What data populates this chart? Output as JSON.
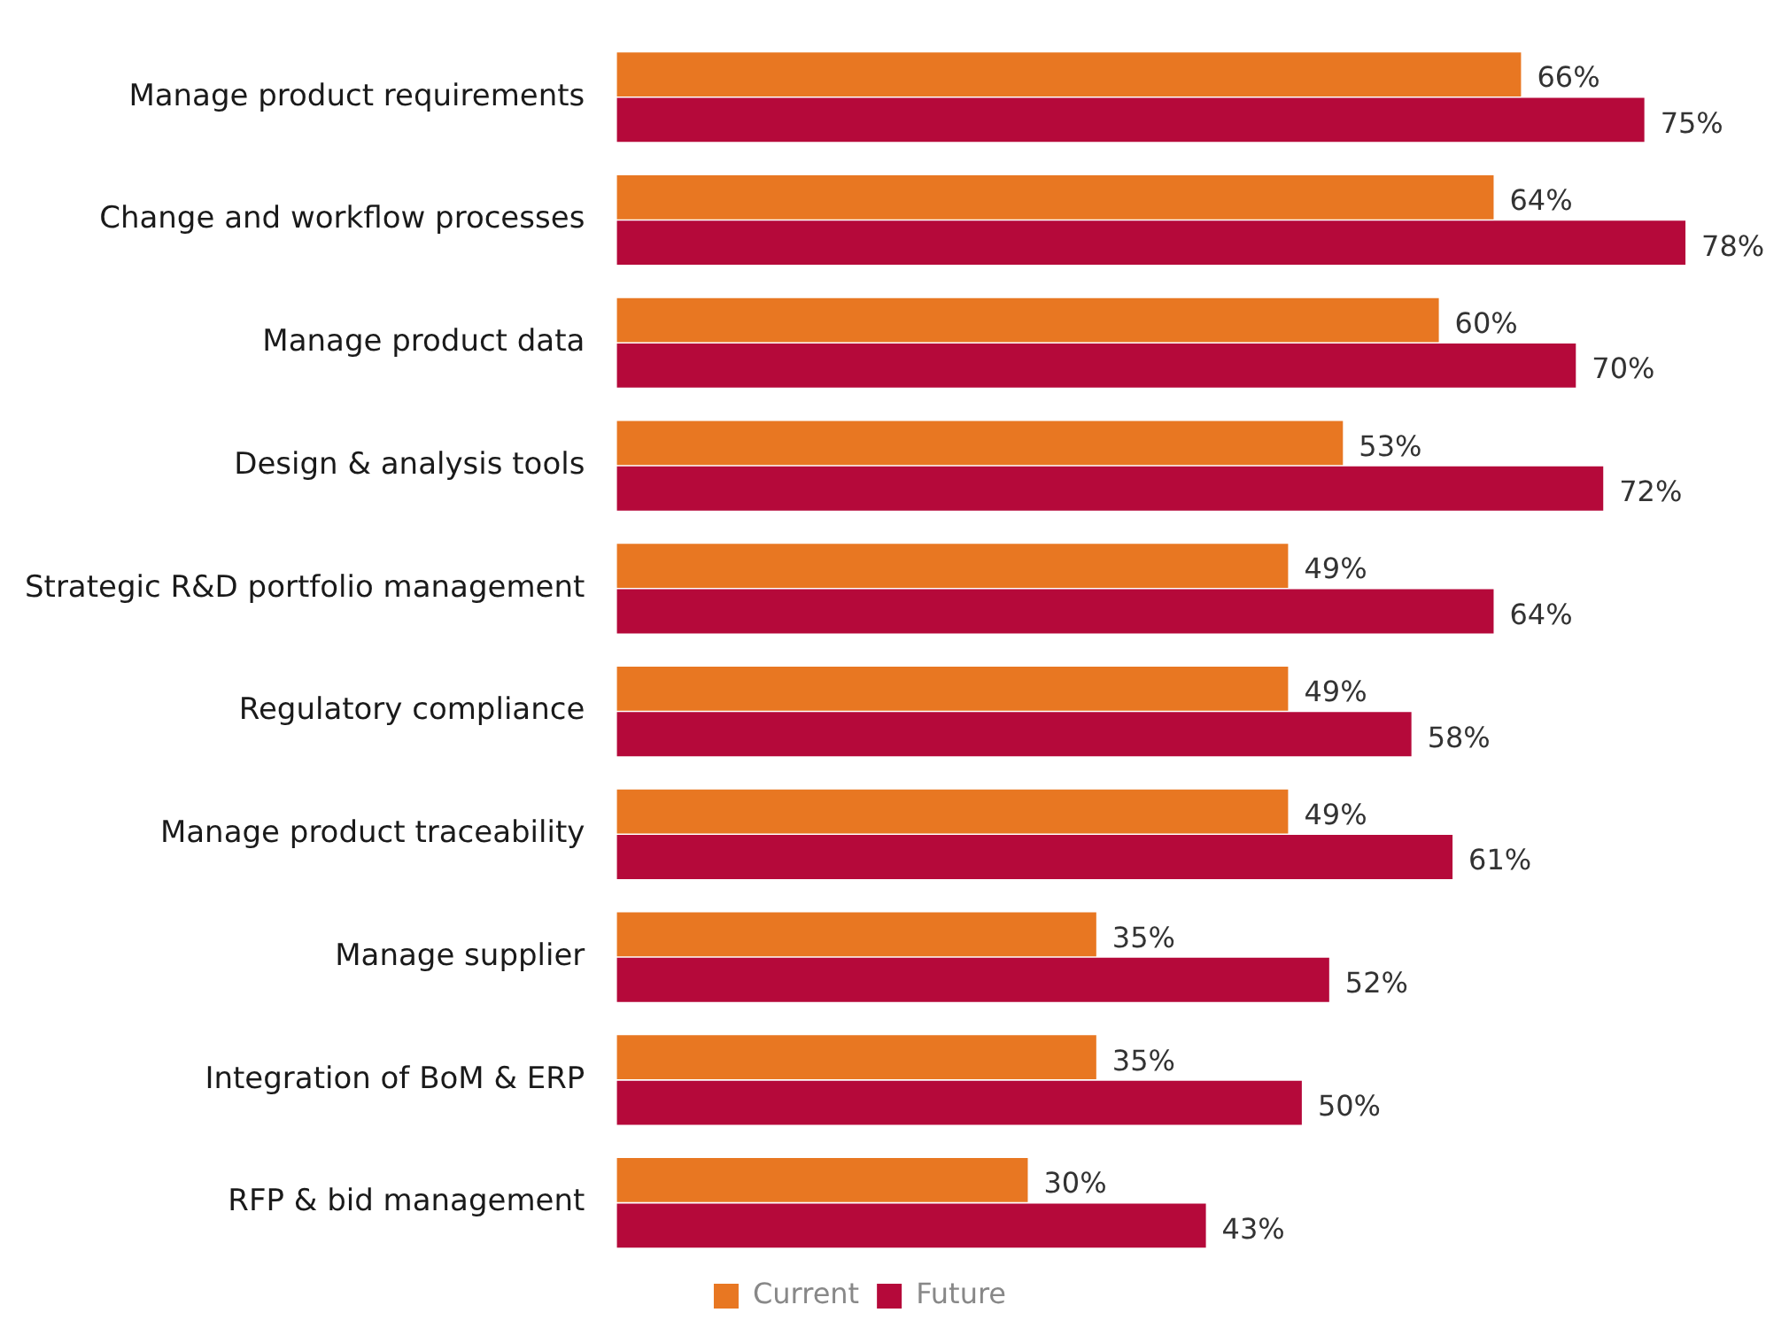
{
  "chart_data": {
    "type": "bar",
    "orientation": "horizontal",
    "categories": [
      "Manage product requirements",
      "Change and workflow processes",
      "Manage product data",
      "Design & analysis tools",
      "Strategic R&D portfolio management",
      "Regulatory compliance",
      "Manage product traceability",
      "Manage supplier",
      "Integration of BoM & ERP",
      "RFP & bid management"
    ],
    "series": [
      {
        "name": "Current",
        "color": "#e87722",
        "values": [
          66,
          64,
          60,
          53,
          49,
          49,
          49,
          35,
          35,
          30
        ],
        "value_labels": [
          "66%",
          "64%",
          "60%",
          "53%",
          "49%",
          "49%",
          "49%",
          "35%",
          "35%",
          "30%"
        ]
      },
      {
        "name": "Future",
        "color": "#b5093a",
        "values": [
          75,
          78,
          70,
          72,
          64,
          58,
          61,
          52,
          50,
          43
        ],
        "value_labels": [
          "75%",
          "78%",
          "70%",
          "72%",
          "64%",
          "58%",
          "61%",
          "52%",
          "50%",
          "43%"
        ]
      }
    ],
    "legend": "bottom",
    "grid": false,
    "tick_labels": "y"
  }
}
